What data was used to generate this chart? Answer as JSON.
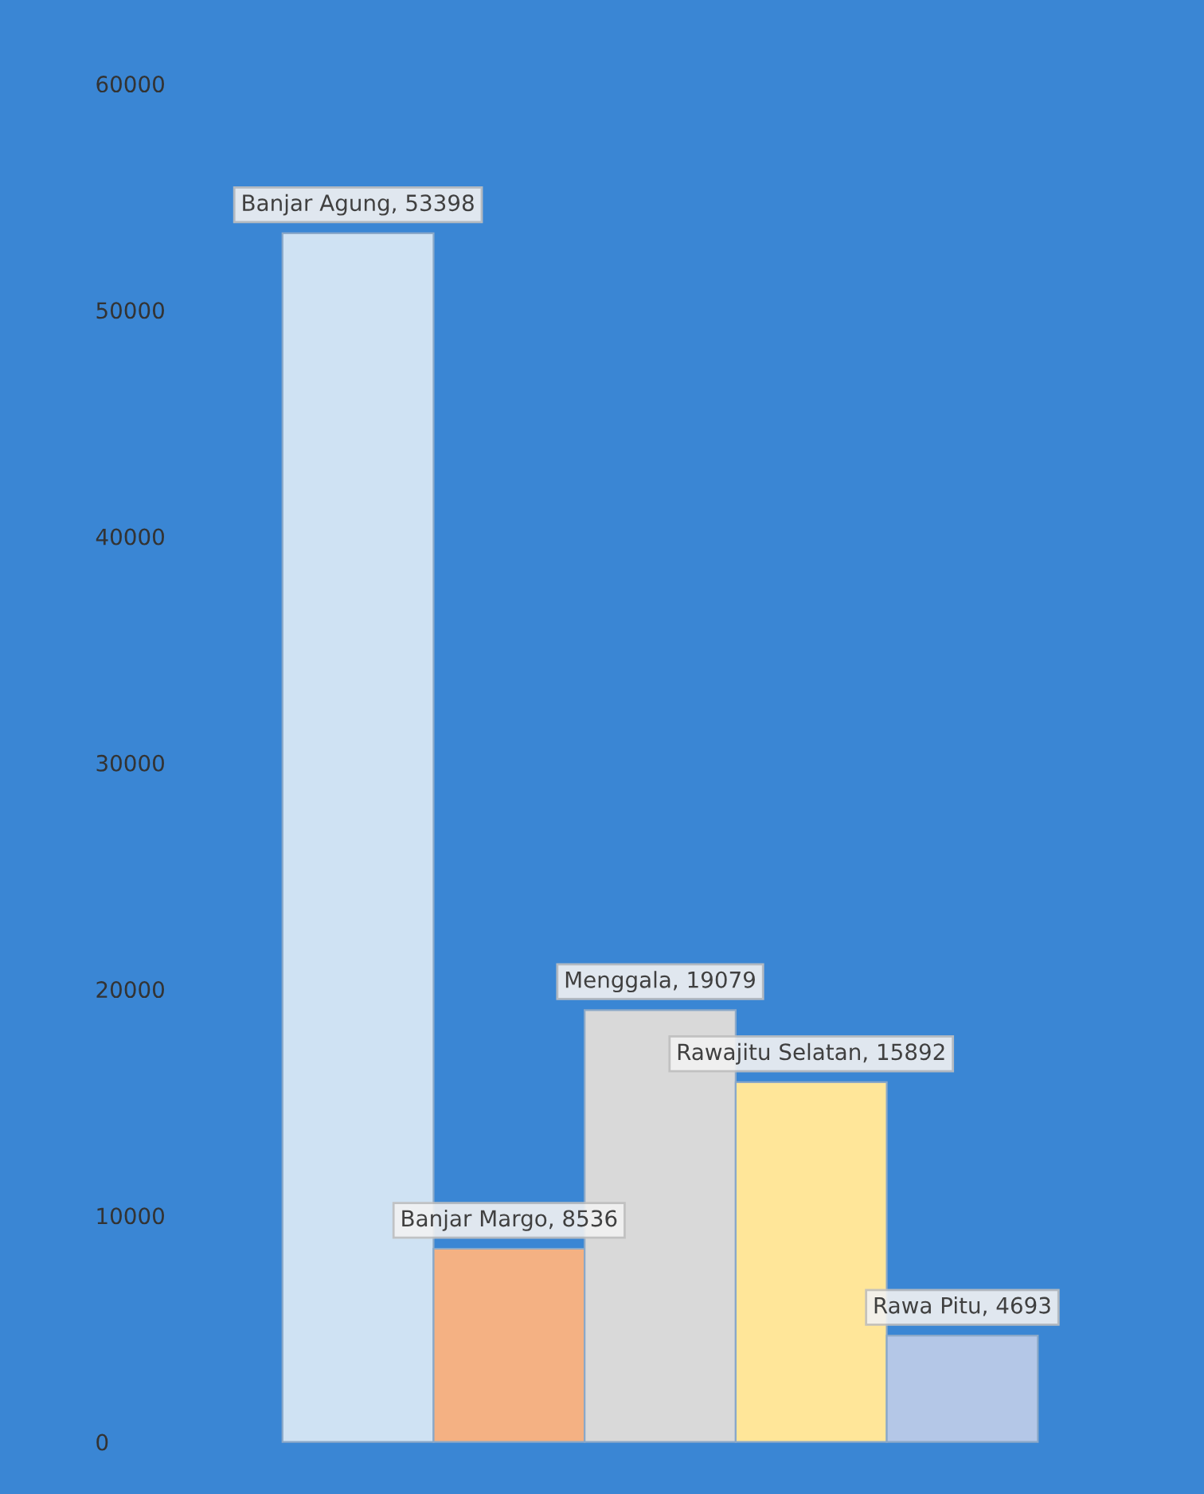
{
  "chart_data": {
    "type": "bar",
    "categories": [
      null,
      null,
      null,
      null,
      null
    ],
    "values": [
      53398,
      8536,
      19079,
      15892,
      4693
    ],
    "colors": [
      "#cfe2f3",
      "#f4b183",
      "#d9d9d9",
      "#ffe699",
      "#b4c7e7"
    ],
    "value_labels": [
      "Banjar Agung, 53398",
      "Banjar Margo, 8536",
      "Menggala, 19079",
      "Rawajitu Selatan, 15892",
      "Rawa Pitu, 4693"
    ],
    "ylim": [
      -2300,
      63700
    ],
    "yticks": [
      0,
      10000,
      20000,
      30000,
      40000,
      50000,
      60000
    ],
    "tick_labels": "y",
    "grid": false,
    "legend": false
  }
}
